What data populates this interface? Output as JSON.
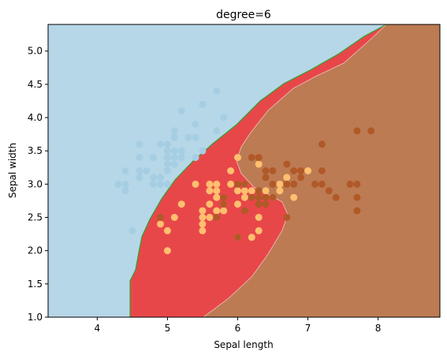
{
  "chart_data": {
    "type": "scatter",
    "title": "degree=6",
    "xlabel": "Sepal length",
    "ylabel": "Sepal width",
    "xlim": [
      3.3,
      8.88
    ],
    "ylim": [
      1.0,
      5.4
    ],
    "xticks": [
      "4",
      "5",
      "6",
      "7",
      "8"
    ],
    "yticks": [
      "1.0",
      "1.5",
      "2.0",
      "2.5",
      "3.0",
      "3.5",
      "4.0",
      "4.5",
      "5.0"
    ],
    "grid": false,
    "regions": [
      {
        "class": 0,
        "color": "#b6d7e8"
      },
      {
        "class": 1,
        "color": "#e8474a"
      },
      {
        "class": 2,
        "color": "#bd7b53"
      }
    ],
    "series": [
      {
        "class": 0,
        "color": "#a6cee3",
        "points": [
          [
            4.3,
            3.0
          ],
          [
            4.4,
            3.2
          ],
          [
            4.4,
            3.0
          ],
          [
            4.4,
            2.9
          ],
          [
            4.5,
            2.3
          ],
          [
            4.6,
            3.6
          ],
          [
            4.6,
            3.4
          ],
          [
            4.6,
            3.2
          ],
          [
            4.6,
            3.1
          ],
          [
            4.7,
            3.2
          ],
          [
            4.8,
            3.4
          ],
          [
            4.8,
            3.1
          ],
          [
            4.8,
            3.0
          ],
          [
            4.9,
            3.6
          ],
          [
            4.9,
            3.1
          ],
          [
            4.9,
            3.0
          ],
          [
            5.0,
            3.6
          ],
          [
            5.0,
            3.5
          ],
          [
            5.0,
            3.4
          ],
          [
            5.0,
            3.3
          ],
          [
            5.0,
            3.2
          ],
          [
            5.0,
            3.0
          ],
          [
            5.1,
            3.8
          ],
          [
            5.1,
            3.7
          ],
          [
            5.1,
            3.5
          ],
          [
            5.1,
            3.4
          ],
          [
            5.1,
            3.3
          ],
          [
            5.2,
            4.1
          ],
          [
            5.2,
            3.5
          ],
          [
            5.2,
            3.4
          ],
          [
            5.3,
            3.7
          ],
          [
            5.4,
            3.9
          ],
          [
            5.4,
            3.7
          ],
          [
            5.4,
            3.4
          ],
          [
            5.5,
            4.2
          ],
          [
            5.5,
            3.5
          ],
          [
            5.7,
            4.4
          ],
          [
            5.7,
            3.8
          ],
          [
            5.8,
            4.0
          ]
        ]
      },
      {
        "class": 1,
        "color": "#ffbf6f",
        "points": [
          [
            4.9,
            2.4
          ],
          [
            5.0,
            2.0
          ],
          [
            5.0,
            2.3
          ],
          [
            5.1,
            2.5
          ],
          [
            5.2,
            2.7
          ],
          [
            5.4,
            3.0
          ],
          [
            5.5,
            2.3
          ],
          [
            5.5,
            2.4
          ],
          [
            5.5,
            2.5
          ],
          [
            5.5,
            2.6
          ],
          [
            5.6,
            2.9
          ],
          [
            5.6,
            3.0
          ],
          [
            5.6,
            2.5
          ],
          [
            5.6,
            2.7
          ],
          [
            5.7,
            2.8
          ],
          [
            5.7,
            2.6
          ],
          [
            5.7,
            2.9
          ],
          [
            5.7,
            3.0
          ],
          [
            5.8,
            2.7
          ],
          [
            5.8,
            2.6
          ],
          [
            5.9,
            3.0
          ],
          [
            5.9,
            3.2
          ],
          [
            6.0,
            3.4
          ],
          [
            6.0,
            2.9
          ],
          [
            6.0,
            2.7
          ],
          [
            6.0,
            2.2
          ],
          [
            6.1,
            2.8
          ],
          [
            6.1,
            2.9
          ],
          [
            6.1,
            3.0
          ],
          [
            6.2,
            2.2
          ],
          [
            6.2,
            2.9
          ],
          [
            6.3,
            2.5
          ],
          [
            6.3,
            2.3
          ],
          [
            6.3,
            3.3
          ],
          [
            6.4,
            2.9
          ],
          [
            6.5,
            2.8
          ],
          [
            6.6,
            2.9
          ],
          [
            6.6,
            3.0
          ],
          [
            6.7,
            3.1
          ],
          [
            6.8,
            2.8
          ],
          [
            6.9,
            3.1
          ],
          [
            7.0,
            3.2
          ]
        ]
      },
      {
        "class": 2,
        "color": "#b15928",
        "points": [
          [
            4.9,
            2.5
          ],
          [
            5.7,
            2.5
          ],
          [
            5.8,
            2.7
          ],
          [
            5.8,
            2.8
          ],
          [
            6.0,
            2.2
          ],
          [
            6.0,
            3.0
          ],
          [
            6.1,
            2.6
          ],
          [
            6.1,
            3.0
          ],
          [
            6.2,
            2.8
          ],
          [
            6.2,
            3.4
          ],
          [
            6.3,
            2.9
          ],
          [
            6.3,
            2.7
          ],
          [
            6.3,
            2.8
          ],
          [
            6.3,
            3.4
          ],
          [
            6.4,
            2.7
          ],
          [
            6.4,
            2.8
          ],
          [
            6.4,
            3.2
          ],
          [
            6.4,
            3.1
          ],
          [
            6.5,
            3.0
          ],
          [
            6.5,
            3.2
          ],
          [
            6.5,
            2.8
          ],
          [
            6.7,
            3.3
          ],
          [
            6.7,
            3.0
          ],
          [
            6.7,
            2.5
          ],
          [
            6.8,
            3.0
          ],
          [
            6.8,
            3.2
          ],
          [
            6.9,
            3.2
          ],
          [
            6.9,
            3.1
          ],
          [
            7.1,
            3.0
          ],
          [
            7.2,
            3.6
          ],
          [
            7.2,
            3.2
          ],
          [
            7.2,
            3.0
          ],
          [
            7.3,
            2.9
          ],
          [
            7.4,
            2.8
          ],
          [
            7.6,
            3.0
          ],
          [
            7.7,
            3.8
          ],
          [
            7.7,
            2.6
          ],
          [
            7.7,
            2.8
          ],
          [
            7.7,
            3.0
          ],
          [
            7.9,
            3.8
          ]
        ]
      }
    ]
  }
}
